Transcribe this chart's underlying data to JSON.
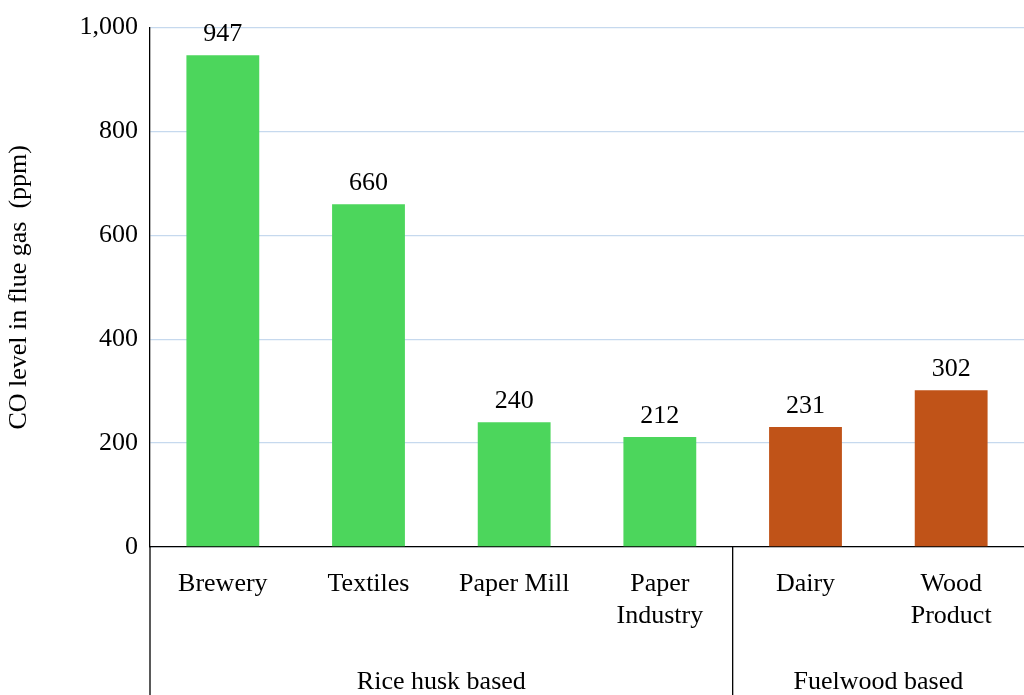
{
  "chart_data": {
    "type": "bar",
    "ylabel": "CO level in flue gas  (ppm)",
    "categories": [
      "Brewery",
      "Textiles",
      "Paper Mill",
      "Paper Industry",
      "Dairy",
      "Wood Product"
    ],
    "values": [
      947,
      660,
      240,
      212,
      231,
      302
    ],
    "colors": [
      "#4cd65c",
      "#4cd65c",
      "#4cd65c",
      "#4cd65c",
      "#c05318",
      "#c05318"
    ],
    "ylim": [
      0,
      1000
    ],
    "yticks": [
      0,
      200,
      400,
      600,
      800,
      {
        "value": 1000,
        "label": "1,000"
      }
    ],
    "grid": "y",
    "legend": false,
    "data_labels": true,
    "annotations": [
      "Rice husk based",
      "Fuelwood based"
    ]
  }
}
